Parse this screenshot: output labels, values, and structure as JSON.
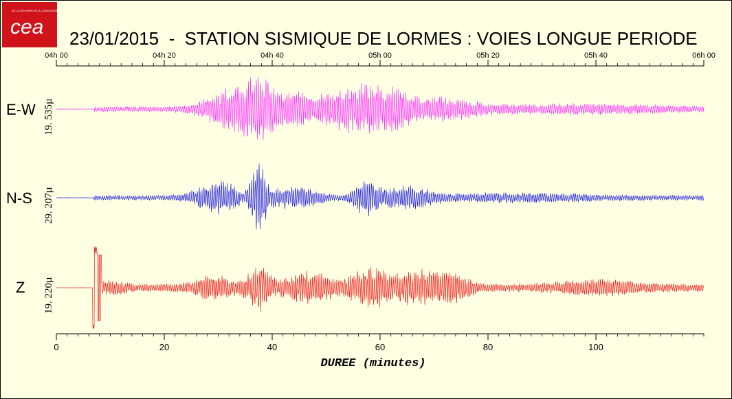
{
  "logo": {
    "text": "cea",
    "tagline": "DE LA RECHERCHE À L'INDUSTRIE"
  },
  "title": "23/01/2015  -  STATION SISMIQUE DE LORMES : VOIES LONGUE PERIODE",
  "chart_data": {
    "type": "line",
    "title": "23/01/2015  -  STATION SISMIQUE DE LORMES : VOIES LONGUE PERIODE",
    "xlabel": "DUREE (minutes)",
    "xlim": [
      0,
      120
    ],
    "bottom_ticks": [
      0,
      20,
      40,
      60,
      80,
      100
    ],
    "top_ticks": [
      "04h 00",
      "04h 20",
      "04h 40",
      "05h 00",
      "05h 20",
      "05h 40",
      "06h 00"
    ],
    "grid": false,
    "series": [
      {
        "name": "E-W",
        "scale": "19. 535µ",
        "color": "#ff33ff",
        "event_start_min": 7,
        "envelope_peaks_min": [
          37.5,
          57.5
        ]
      },
      {
        "name": "N-S",
        "scale": "29. 207µ",
        "color": "#2222dd",
        "event_start_min": 7,
        "envelope_peaks_min": [
          37.5,
          57.5
        ]
      },
      {
        "name": "Z",
        "scale": "19. 220µ",
        "color": "#ee2222",
        "event_start_min": 7,
        "envelope_peaks_min": [
          7,
          37.5,
          58
        ]
      }
    ]
  }
}
